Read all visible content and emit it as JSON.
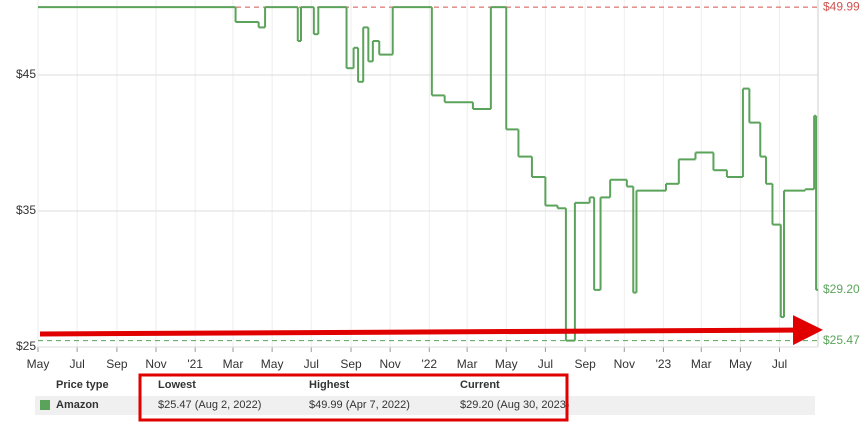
{
  "chart_data": {
    "type": "step",
    "x": [
      "2020-05-01",
      "2021-03-05",
      "2021-04-10",
      "2021-04-20",
      "2021-06-10",
      "2021-06-15",
      "2021-07-05",
      "2021-07-12",
      "2021-08-25",
      "2021-09-05",
      "2021-09-12",
      "2021-09-20",
      "2021-09-28",
      "2021-10-05",
      "2021-10-15",
      "2021-11-05",
      "2022-01-05",
      "2022-01-25",
      "2022-03-10",
      "2022-04-07",
      "2022-05-01",
      "2022-05-20",
      "2022-06-10",
      "2022-07-01",
      "2022-07-20",
      "2022-08-02",
      "2022-08-16",
      "2022-09-08",
      "2022-09-15",
      "2022-09-25",
      "2022-10-10",
      "2022-11-05",
      "2022-11-15",
      "2022-11-20",
      "2023-01-05",
      "2023-01-25",
      "2023-02-20",
      "2023-03-20",
      "2023-04-10",
      "2023-05-05",
      "2023-05-15",
      "2023-06-01",
      "2023-06-10",
      "2023-06-20",
      "2023-07-03",
      "2023-07-08",
      "2023-08-10",
      "2023-08-24",
      "2023-08-27",
      "2023-08-30"
    ],
    "series": [
      {
        "name": "Amazon",
        "color": "#5ba35b",
        "values": [
          49.99,
          48.9,
          48.5,
          49.99,
          47.5,
          49.99,
          48.0,
          49.99,
          45.5,
          47.0,
          44.5,
          48.5,
          46.0,
          47.5,
          46.5,
          49.99,
          43.5,
          43.0,
          42.5,
          49.99,
          41.0,
          39.0,
          37.5,
          35.4,
          35.2,
          25.47,
          35.6,
          36.0,
          29.2,
          36.0,
          37.3,
          36.8,
          29.0,
          36.5,
          37.0,
          38.8,
          39.3,
          38.0,
          37.5,
          44.0,
          41.5,
          39.0,
          37.0,
          34.0,
          27.2,
          36.5,
          36.6,
          42.0,
          29.2,
          29.2
        ]
      }
    ],
    "xlim": [
      "2020-05-01",
      "2023-08-30"
    ],
    "xticks": [
      {
        "value": "2020-05-01",
        "label": "May"
      },
      {
        "value": "2020-07-01",
        "label": "Jul"
      },
      {
        "value": "2020-09-01",
        "label": "Sep"
      },
      {
        "value": "2020-11-01",
        "label": "Nov"
      },
      {
        "value": "2021-01-01",
        "label": "'21"
      },
      {
        "value": "2021-03-01",
        "label": "Mar"
      },
      {
        "value": "2021-05-01",
        "label": "May"
      },
      {
        "value": "2021-07-01",
        "label": "Jul"
      },
      {
        "value": "2021-09-01",
        "label": "Sep"
      },
      {
        "value": "2021-11-01",
        "label": "Nov"
      },
      {
        "value": "2022-01-01",
        "label": "'22"
      },
      {
        "value": "2022-03-01",
        "label": "Mar"
      },
      {
        "value": "2022-05-01",
        "label": "May"
      },
      {
        "value": "2022-07-01",
        "label": "Jul"
      },
      {
        "value": "2022-09-01",
        "label": "Sep"
      },
      {
        "value": "2022-11-01",
        "label": "Nov"
      },
      {
        "value": "2023-01-01",
        "label": "'23"
      },
      {
        "value": "2023-03-01",
        "label": "Mar"
      },
      {
        "value": "2023-05-01",
        "label": "May"
      },
      {
        "value": "2023-07-01",
        "label": "Jul"
      }
    ],
    "ylim": [
      25,
      50
    ],
    "yticks": [
      {
        "value": 45,
        "label": "$45"
      },
      {
        "value": 35,
        "label": "$35"
      },
      {
        "value": 25,
        "label": "$25"
      }
    ],
    "grid": true,
    "reference_labels": [
      {
        "value": 49.99,
        "label": "$49.99",
        "color": "#d0534f",
        "dashed": true
      },
      {
        "value": 29.2,
        "label": "$29.20",
        "color": "#5ba35b",
        "dashed": false
      },
      {
        "value": 25.47,
        "label": "$25.47",
        "color": "#5ba35b",
        "dashed": true
      }
    ]
  },
  "table": {
    "header": [
      "Price type",
      "Lowest",
      "Highest",
      "Current"
    ],
    "rows": [
      [
        "Amazon",
        "$25.47 (Aug 2, 2022)",
        "$49.99 (Apr 7, 2022)",
        "$29.20 (Aug 30, 2023)"
      ]
    ]
  }
}
